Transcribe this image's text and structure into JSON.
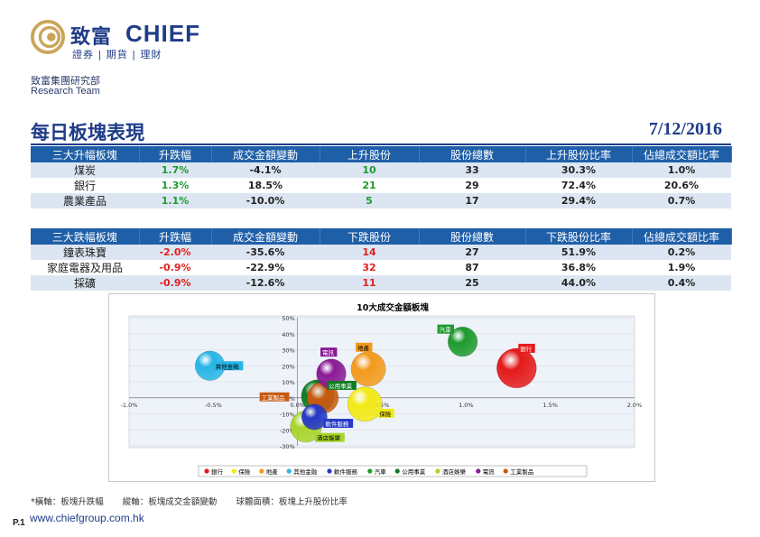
{
  "logo": {
    "cn": "致富",
    "en": "CHIEF",
    "sub": "證券 | 期貨 | 理財"
  },
  "dept": {
    "cn": "致富集團研究部",
    "en": "Research Team"
  },
  "title": "每日板塊表現",
  "date": "7/12/2016",
  "top_table": {
    "headers": [
      "三大升幅板塊",
      "升跌幅",
      "成交金額變動",
      "上升股份",
      "股份總數",
      "上升股份比率",
      "佔總成交額比率"
    ],
    "rows": [
      [
        "煤炭",
        "1.7%",
        "-4.1%",
        "10",
        "33",
        "30.3%",
        "1.0%"
      ],
      [
        "銀行",
        "1.3%",
        "18.5%",
        "21",
        "29",
        "72.4%",
        "20.6%"
      ],
      [
        "農業產品",
        "1.1%",
        "-10.0%",
        "5",
        "17",
        "29.4%",
        "0.7%"
      ]
    ]
  },
  "bottom_table": {
    "headers": [
      "三大跌幅板塊",
      "升跌幅",
      "成交金額變動",
      "下跌股份",
      "股份總數",
      "下跌股份比率",
      "佔總成交額比率"
    ],
    "rows": [
      [
        "鐘表珠寶",
        "-2.0%",
        "-35.6%",
        "14",
        "27",
        "51.9%",
        "0.2%"
      ],
      [
        "家庭電器及用品",
        "-0.9%",
        "-22.9%",
        "32",
        "87",
        "36.8%",
        "1.9%"
      ],
      [
        "採礦",
        "-0.9%",
        "-12.6%",
        "11",
        "25",
        "44.0%",
        "0.4%"
      ]
    ]
  },
  "colors": {
    "brand": "#1f3c88",
    "header": "#1f5fa8",
    "alt_row": "#dce6f2",
    "up": "#1e9a2e",
    "down": "#e02020"
  },
  "chart_data": {
    "type": "scatter",
    "title": "10大成交金額板塊",
    "x_ticks": [
      "-1.0%",
      "-0.5%",
      "0.0%",
      "0.5%",
      "1.0%",
      "1.5%",
      "2.0%"
    ],
    "y_ticks": [
      "50%",
      "40%",
      "30%",
      "20%",
      "10%",
      "0%",
      "-10%",
      "-20%",
      "-30%"
    ],
    "xlim": [
      -1.0,
      2.0
    ],
    "ylim": [
      -30,
      50
    ],
    "series": [
      {
        "name": "銀行",
        "x": 1.3,
        "y": 18.5,
        "size": 72.4,
        "color": "#e41a1a",
        "label_color": "#e41a1a",
        "label_text_color": "#ffffff"
      },
      {
        "name": "保險",
        "x": 0.4,
        "y": -4,
        "size": 55,
        "color": "#f2ea14",
        "label_color": "#f2ea14",
        "label_text_color": "#000000"
      },
      {
        "name": "地產",
        "x": 0.42,
        "y": 18,
        "size": 55,
        "color": "#f39a1c",
        "label_color": "#f39a1c",
        "label_text_color": "#000000"
      },
      {
        "name": "其他金融",
        "x": -0.52,
        "y": 20,
        "size": 40,
        "color": "#27b6e6",
        "label_color": "#27b6e6",
        "label_text_color": "#000000"
      },
      {
        "name": "軟件服務",
        "x": 0.1,
        "y": -12,
        "size": 30,
        "color": "#2438c8",
        "label_color": "#2438c8",
        "label_text_color": "#ffffff"
      },
      {
        "name": "汽車",
        "x": 0.98,
        "y": 35,
        "size": 40,
        "color": "#1e9a2e",
        "label_color": "#1e9a2e",
        "label_text_color": "#ffffff"
      },
      {
        "name": "公用事業",
        "x": 0.12,
        "y": 1,
        "size": 50,
        "color": "#107a22",
        "label_color": "#107a22",
        "label_text_color": "#ffffff"
      },
      {
        "name": "酒店娛樂",
        "x": 0.05,
        "y": -18,
        "size": 45,
        "color": "#a8d52a",
        "label_color": "#a8d52a",
        "label_text_color": "#000000"
      },
      {
        "name": "電訊",
        "x": 0.2,
        "y": 15,
        "size": 40,
        "color": "#8a1a96",
        "label_color": "#8a1a96",
        "label_text_color": "#ffffff"
      },
      {
        "name": "工業製品",
        "x": 0.15,
        "y": 0,
        "size": 45,
        "color": "#c85a10",
        "label_color": "#c85a10",
        "label_text_color": "#ffffff"
      }
    ],
    "legend": [
      "銀行",
      "保險",
      "地產",
      "其他金融",
      "軟件服務",
      "汽車",
      "公用事業",
      "酒店娛樂",
      "電訊",
      "工業製品"
    ],
    "legend_position": "bottom"
  },
  "footnote": {
    "x_axis": "*橫軸：板塊升跌幅",
    "y_axis": "縱軸：板塊成交金額變動",
    "bubble": "球體面積：板塊上升股份比率"
  },
  "page_no": "P.1",
  "url": "www.chiefgroup.com.hk"
}
